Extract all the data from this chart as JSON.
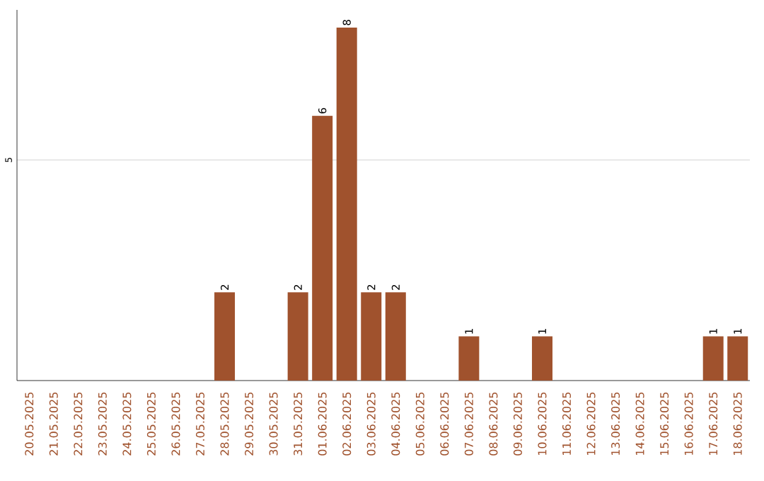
{
  "chart_data": {
    "type": "bar",
    "categories": [
      "20.05.2025",
      "21.05.2025",
      "22.05.2025",
      "23.05.2025",
      "24.05.2025",
      "25.05.2025",
      "26.05.2025",
      "27.05.2025",
      "28.05.2025",
      "29.05.2025",
      "30.05.2025",
      "31.05.2025",
      "01.06.2025",
      "02.06.2025",
      "03.06.2025",
      "04.06.2025",
      "05.06.2025",
      "06.06.2025",
      "07.06.2025",
      "08.06.2025",
      "09.06.2025",
      "10.06.2025",
      "11.06.2025",
      "12.06.2025",
      "13.06.2025",
      "14.06.2025",
      "15.06.2025",
      "16.06.2025",
      "17.06.2025",
      "18.06.2025"
    ],
    "values": [
      0,
      0,
      0,
      0,
      0,
      0,
      0,
      0,
      2,
      0,
      0,
      2,
      6,
      8,
      2,
      2,
      0,
      0,
      1,
      0,
      0,
      1,
      0,
      0,
      0,
      0,
      0,
      0,
      1,
      1
    ],
    "value_labels": [
      null,
      null,
      null,
      null,
      null,
      null,
      null,
      null,
      "2",
      null,
      null,
      "2",
      "6",
      "8",
      "2",
      "2",
      null,
      null,
      "1",
      null,
      null,
      "1",
      null,
      null,
      null,
      null,
      null,
      null,
      "1",
      "1"
    ],
    "color": "#a0522d",
    "ylim": [
      0,
      8.4
    ],
    "yticks": [
      5
    ],
    "grid": "y"
  }
}
